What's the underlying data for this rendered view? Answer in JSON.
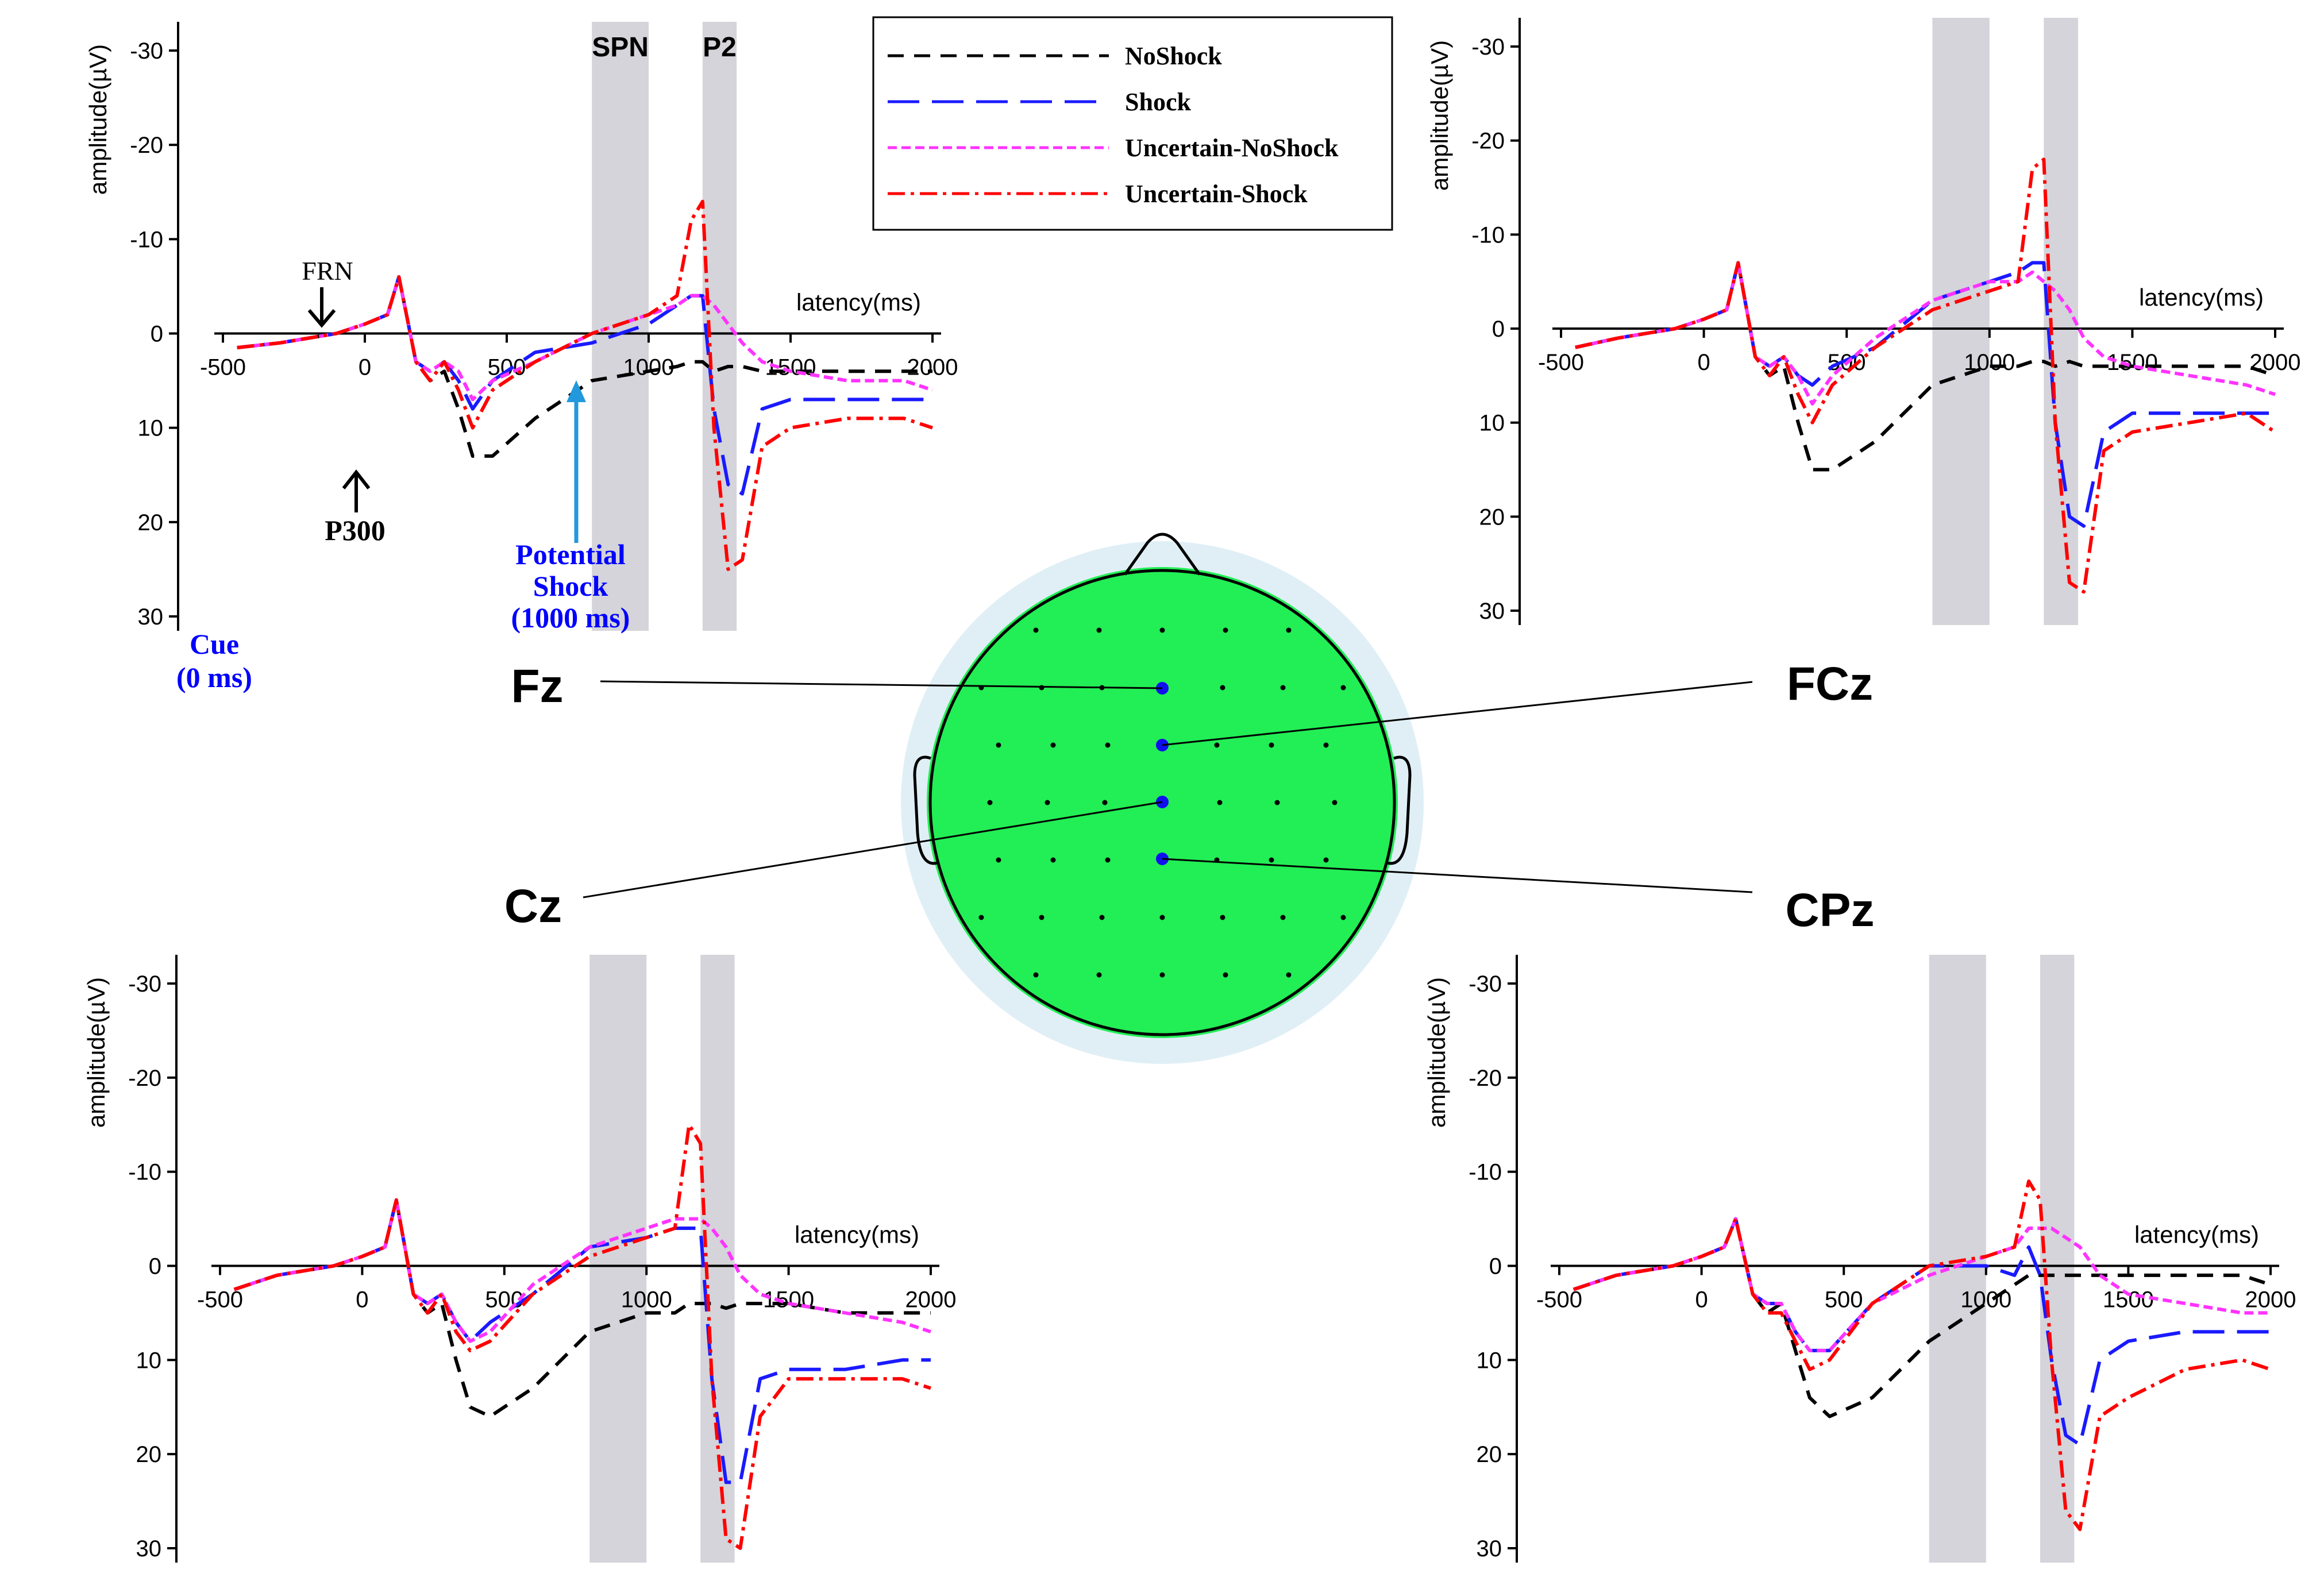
{
  "chart_data": {
    "type": "line",
    "series_legend": [
      {
        "name": "NoShock",
        "color": "#000000",
        "dash": "dashed"
      },
      {
        "name": "Shock",
        "color": "#1a1aff",
        "dash": "long-dashed"
      },
      {
        "name": "Uncertain-NoShock",
        "color": "#ff33ff",
        "dash": "short-dashed"
      },
      {
        "name": "Uncertain-Shock",
        "color": "#ff0000",
        "dash": "dash-dot"
      }
    ],
    "xlabel": "latency(ms)",
    "ylabel": "amplitude(µV)",
    "xlim": [
      -500,
      2000
    ],
    "ylim": [
      -30,
      30
    ],
    "y_inverted": true,
    "xticks": [
      -500,
      0,
      500,
      1000,
      1500,
      2000
    ],
    "yticks": [
      -30,
      -20,
      -10,
      0,
      10,
      20,
      30
    ],
    "xtick_labels": [
      "-500",
      "0",
      "500",
      "1000",
      "1500",
      "2000"
    ],
    "ytick_labels": [
      "-30",
      "-20",
      "-10",
      "0",
      "10",
      "20",
      "30"
    ],
    "shaded_windows": [
      {
        "label": "SPN",
        "range_ms": [
          800,
          1000
        ]
      },
      {
        "label": "P2",
        "range_ms": [
          1190,
          1310
        ]
      }
    ],
    "annotations": {
      "frn": "FRN",
      "p300": "P300",
      "potential_shock_line1": "Potential",
      "potential_shock_line2": "Shock",
      "potential_shock_line3": "(1000 ms)",
      "cue_line1": "Cue",
      "cue_line2": "(0 ms)"
    },
    "panels": [
      {
        "electrode": "Fz",
        "x": [
          -450,
          -300,
          -100,
          0,
          80,
          120,
          180,
          230,
          280,
          330,
          380,
          450,
          600,
          800,
          1000,
          1100,
          1150,
          1190,
          1230,
          1280,
          1330,
          1400,
          1500,
          1700,
          1900,
          2000
        ],
        "series": [
          {
            "name": "NoShock",
            "values": [
              1.5,
              1,
              0,
              -1,
              -2,
              -6,
              3,
              5,
              4,
              8,
              13,
              13,
              9,
              5,
              4,
              3.5,
              3,
              3,
              4,
              3.5,
              3.5,
              4,
              4,
              4,
              4,
              4
            ]
          },
          {
            "name": "Shock",
            "values": [
              1.5,
              1,
              0,
              -1,
              -2,
              -6,
              3,
              4,
              3,
              5,
              8,
              5,
              2,
              1,
              -1,
              -3,
              -4,
              -4,
              8,
              16,
              17,
              8,
              7,
              7,
              7,
              7
            ]
          },
          {
            "name": "Uncertain-NoShock",
            "values": [
              1.5,
              1,
              0,
              -1,
              -2,
              -6,
              3,
              4,
              3,
              4,
              7,
              5,
              3,
              0,
              -2,
              -3,
              -4,
              -4,
              -3,
              -1,
              1,
              3,
              4,
              5,
              5,
              6
            ]
          },
          {
            "name": "Uncertain-Shock",
            "values": [
              1.5,
              1,
              0,
              -1,
              -2,
              -6,
              3,
              5,
              3,
              6,
              10,
              6,
              3,
              0,
              -2,
              -4,
              -12,
              -14,
              10,
              25,
              24,
              12,
              10,
              9,
              9,
              10
            ]
          }
        ]
      },
      {
        "electrode": "FCz",
        "x": [
          -450,
          -300,
          -100,
          0,
          80,
          120,
          180,
          230,
          280,
          330,
          380,
          450,
          600,
          800,
          1000,
          1100,
          1150,
          1190,
          1230,
          1280,
          1330,
          1400,
          1500,
          1700,
          1900,
          2000
        ],
        "series": [
          {
            "name": "NoShock",
            "values": [
              2,
              1,
              0,
              -1,
              -2,
              -7,
              3,
              5,
              4,
              10,
              15,
              15,
              12,
              6,
              4,
              4,
              3.5,
              3.5,
              4,
              3.5,
              4,
              4,
              4,
              4,
              4,
              5
            ]
          },
          {
            "name": "Shock",
            "values": [
              2,
              1,
              0,
              -1,
              -2,
              -7,
              3,
              4,
              3,
              5,
              6,
              4,
              2,
              -3,
              -5,
              -6,
              -7,
              -7,
              10,
              20,
              21,
              11,
              9,
              9,
              9,
              9
            ]
          },
          {
            "name": "Uncertain-NoShock",
            "values": [
              2,
              1,
              0,
              -1,
              -2,
              -7,
              3,
              4,
              3,
              5,
              8,
              5,
              1,
              -3,
              -5,
              -5,
              -6,
              -5,
              -4,
              -2,
              1,
              3,
              4,
              5,
              6,
              7
            ]
          },
          {
            "name": "Uncertain-Shock",
            "values": [
              2,
              1,
              0,
              -1,
              -2,
              -7,
              3,
              5,
              3,
              7,
              10,
              6,
              2,
              -2,
              -4,
              -5,
              -17,
              -18,
              10,
              27,
              28,
              13,
              11,
              10,
              9,
              11
            ]
          }
        ]
      },
      {
        "electrode": "Cz",
        "x": [
          -450,
          -300,
          -100,
          0,
          80,
          120,
          180,
          230,
          280,
          330,
          380,
          450,
          600,
          800,
          1000,
          1100,
          1150,
          1190,
          1230,
          1280,
          1330,
          1400,
          1500,
          1700,
          1900,
          2000
        ],
        "series": [
          {
            "name": "NoShock",
            "values": [
              2.5,
              1,
              0,
              -1,
              -2,
              -7,
              3,
              5,
              4,
              10,
              15,
              16,
              13,
              7,
              5,
              5,
              4,
              4,
              4,
              4.5,
              4,
              4,
              4,
              5,
              5,
              5
            ]
          },
          {
            "name": "Shock",
            "values": [
              2.5,
              1,
              0,
              -1,
              -2,
              -7,
              3,
              4,
              3,
              6,
              8,
              6,
              3,
              -2,
              -3,
              -4,
              -4,
              -4,
              12,
              23,
              23,
              12,
              11,
              11,
              10,
              10
            ]
          },
          {
            "name": "Uncertain-NoShock",
            "values": [
              2.5,
              1,
              0,
              -1,
              -2,
              -7,
              3,
              4,
              3,
              6,
              8,
              7,
              2,
              -2,
              -4,
              -5,
              -5,
              -5,
              -4,
              -2,
              1,
              3,
              4,
              5,
              6,
              7
            ]
          },
          {
            "name": "Uncertain-Shock",
            "values": [
              2.5,
              1,
              0,
              -1,
              -2,
              -7,
              3,
              5,
              3,
              7,
              9,
              8,
              3,
              -1,
              -3,
              -4,
              -15,
              -13,
              12,
              29,
              30,
              16,
              12,
              12,
              12,
              13
            ]
          }
        ]
      },
      {
        "electrode": "CPz",
        "x": [
          -450,
          -300,
          -100,
          0,
          80,
          120,
          180,
          230,
          280,
          330,
          380,
          450,
          600,
          800,
          1000,
          1100,
          1150,
          1190,
          1230,
          1280,
          1330,
          1400,
          1500,
          1700,
          1900,
          2000
        ],
        "series": [
          {
            "name": "NoShock",
            "values": [
              2.5,
              1,
              0,
              -1,
              -2,
              -5,
              3,
              5,
              4,
              9,
              14,
              16,
              14,
              8,
              4,
              2,
              1,
              1,
              1,
              1,
              1,
              1,
              1,
              1,
              1,
              2
            ]
          },
          {
            "name": "Shock",
            "values": [
              2.5,
              1,
              0,
              -1,
              -2,
              -5,
              3,
              4,
              4,
              7,
              9,
              9,
              4,
              0,
              0,
              1,
              -2,
              1,
              10,
              18,
              19,
              10,
              8,
              7,
              7,
              7
            ]
          },
          {
            "name": "Uncertain-NoShock",
            "values": [
              2.5,
              1,
              0,
              -1,
              -2,
              -5,
              3,
              4,
              4,
              7,
              9,
              9,
              4,
              1,
              -1,
              -2,
              -4,
              -4,
              -4,
              -3,
              -2,
              1,
              3,
              4,
              5,
              5
            ]
          },
          {
            "name": "Uncertain-Shock",
            "values": [
              2.5,
              1,
              0,
              -1,
              -2,
              -5,
              3,
              5,
              5,
              8,
              11,
              10,
              4,
              0,
              -1,
              -2,
              -9,
              -7,
              10,
              26,
              28,
              16,
              14,
              11,
              10,
              11
            ]
          }
        ]
      }
    ]
  },
  "topomap": {
    "electrodes": [
      "Fz",
      "FCz",
      "Cz",
      "CPz"
    ],
    "fill_color": "#22ee55",
    "ring_color": "#e0eff6",
    "marker_color": "#1010ee"
  },
  "colors": {
    "shading": "#d4d4da",
    "annotation_blue": "#0000ff",
    "arrow_blue": "#2299dd"
  }
}
